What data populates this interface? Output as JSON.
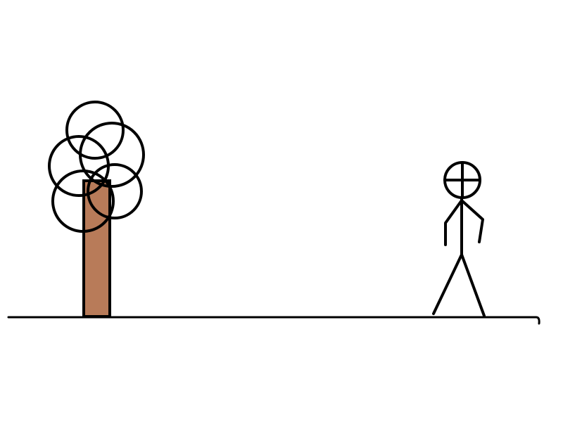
{
  "scene": {
    "background_color": "#ffffff",
    "stroke_color": "#000000",
    "trunk_color": "#b87b59",
    "elements": [
      "ground-line",
      "tree",
      "stick-figure"
    ]
  },
  "icons": {
    "tree": "tree-icon",
    "figure": "stick-figure-icon"
  }
}
